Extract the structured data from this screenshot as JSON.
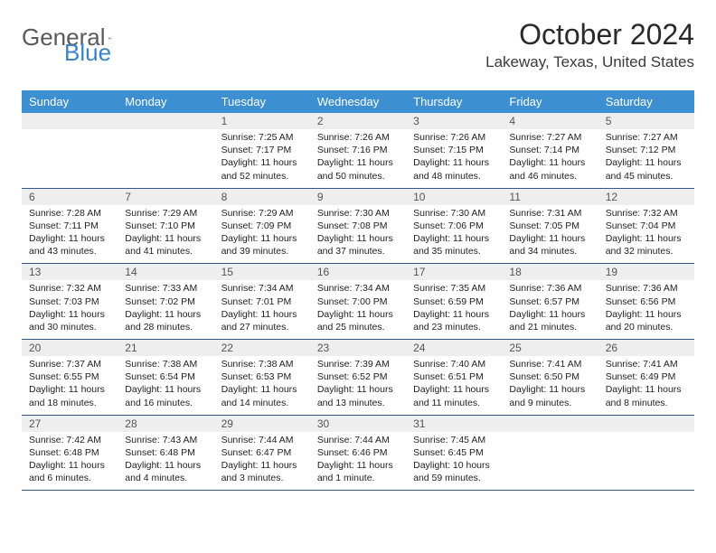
{
  "brand": {
    "part1": "General",
    "part2": "Blue"
  },
  "title": "October 2024",
  "location": "Lakeway, Texas, United States",
  "colors": {
    "header_bg": "#3c8fd1",
    "header_text": "#ffffff",
    "rule": "#34568b",
    "num_bg": "#eeeeee",
    "logo_blue": "#3a84c4"
  },
  "day_names": [
    "Sunday",
    "Monday",
    "Tuesday",
    "Wednesday",
    "Thursday",
    "Friday",
    "Saturday"
  ],
  "weeks": [
    [
      null,
      null,
      {
        "n": "1",
        "sr": "Sunrise: 7:25 AM",
        "ss": "Sunset: 7:17 PM",
        "d1": "Daylight: 11 hours",
        "d2": "and 52 minutes."
      },
      {
        "n": "2",
        "sr": "Sunrise: 7:26 AM",
        "ss": "Sunset: 7:16 PM",
        "d1": "Daylight: 11 hours",
        "d2": "and 50 minutes."
      },
      {
        "n": "3",
        "sr": "Sunrise: 7:26 AM",
        "ss": "Sunset: 7:15 PM",
        "d1": "Daylight: 11 hours",
        "d2": "and 48 minutes."
      },
      {
        "n": "4",
        "sr": "Sunrise: 7:27 AM",
        "ss": "Sunset: 7:14 PM",
        "d1": "Daylight: 11 hours",
        "d2": "and 46 minutes."
      },
      {
        "n": "5",
        "sr": "Sunrise: 7:27 AM",
        "ss": "Sunset: 7:12 PM",
        "d1": "Daylight: 11 hours",
        "d2": "and 45 minutes."
      }
    ],
    [
      {
        "n": "6",
        "sr": "Sunrise: 7:28 AM",
        "ss": "Sunset: 7:11 PM",
        "d1": "Daylight: 11 hours",
        "d2": "and 43 minutes."
      },
      {
        "n": "7",
        "sr": "Sunrise: 7:29 AM",
        "ss": "Sunset: 7:10 PM",
        "d1": "Daylight: 11 hours",
        "d2": "and 41 minutes."
      },
      {
        "n": "8",
        "sr": "Sunrise: 7:29 AM",
        "ss": "Sunset: 7:09 PM",
        "d1": "Daylight: 11 hours",
        "d2": "and 39 minutes."
      },
      {
        "n": "9",
        "sr": "Sunrise: 7:30 AM",
        "ss": "Sunset: 7:08 PM",
        "d1": "Daylight: 11 hours",
        "d2": "and 37 minutes."
      },
      {
        "n": "10",
        "sr": "Sunrise: 7:30 AM",
        "ss": "Sunset: 7:06 PM",
        "d1": "Daylight: 11 hours",
        "d2": "and 35 minutes."
      },
      {
        "n": "11",
        "sr": "Sunrise: 7:31 AM",
        "ss": "Sunset: 7:05 PM",
        "d1": "Daylight: 11 hours",
        "d2": "and 34 minutes."
      },
      {
        "n": "12",
        "sr": "Sunrise: 7:32 AM",
        "ss": "Sunset: 7:04 PM",
        "d1": "Daylight: 11 hours",
        "d2": "and 32 minutes."
      }
    ],
    [
      {
        "n": "13",
        "sr": "Sunrise: 7:32 AM",
        "ss": "Sunset: 7:03 PM",
        "d1": "Daylight: 11 hours",
        "d2": "and 30 minutes."
      },
      {
        "n": "14",
        "sr": "Sunrise: 7:33 AM",
        "ss": "Sunset: 7:02 PM",
        "d1": "Daylight: 11 hours",
        "d2": "and 28 minutes."
      },
      {
        "n": "15",
        "sr": "Sunrise: 7:34 AM",
        "ss": "Sunset: 7:01 PM",
        "d1": "Daylight: 11 hours",
        "d2": "and 27 minutes."
      },
      {
        "n": "16",
        "sr": "Sunrise: 7:34 AM",
        "ss": "Sunset: 7:00 PM",
        "d1": "Daylight: 11 hours",
        "d2": "and 25 minutes."
      },
      {
        "n": "17",
        "sr": "Sunrise: 7:35 AM",
        "ss": "Sunset: 6:59 PM",
        "d1": "Daylight: 11 hours",
        "d2": "and 23 minutes."
      },
      {
        "n": "18",
        "sr": "Sunrise: 7:36 AM",
        "ss": "Sunset: 6:57 PM",
        "d1": "Daylight: 11 hours",
        "d2": "and 21 minutes."
      },
      {
        "n": "19",
        "sr": "Sunrise: 7:36 AM",
        "ss": "Sunset: 6:56 PM",
        "d1": "Daylight: 11 hours",
        "d2": "and 20 minutes."
      }
    ],
    [
      {
        "n": "20",
        "sr": "Sunrise: 7:37 AM",
        "ss": "Sunset: 6:55 PM",
        "d1": "Daylight: 11 hours",
        "d2": "and 18 minutes."
      },
      {
        "n": "21",
        "sr": "Sunrise: 7:38 AM",
        "ss": "Sunset: 6:54 PM",
        "d1": "Daylight: 11 hours",
        "d2": "and 16 minutes."
      },
      {
        "n": "22",
        "sr": "Sunrise: 7:38 AM",
        "ss": "Sunset: 6:53 PM",
        "d1": "Daylight: 11 hours",
        "d2": "and 14 minutes."
      },
      {
        "n": "23",
        "sr": "Sunrise: 7:39 AM",
        "ss": "Sunset: 6:52 PM",
        "d1": "Daylight: 11 hours",
        "d2": "and 13 minutes."
      },
      {
        "n": "24",
        "sr": "Sunrise: 7:40 AM",
        "ss": "Sunset: 6:51 PM",
        "d1": "Daylight: 11 hours",
        "d2": "and 11 minutes."
      },
      {
        "n": "25",
        "sr": "Sunrise: 7:41 AM",
        "ss": "Sunset: 6:50 PM",
        "d1": "Daylight: 11 hours",
        "d2": "and 9 minutes."
      },
      {
        "n": "26",
        "sr": "Sunrise: 7:41 AM",
        "ss": "Sunset: 6:49 PM",
        "d1": "Daylight: 11 hours",
        "d2": "and 8 minutes."
      }
    ],
    [
      {
        "n": "27",
        "sr": "Sunrise: 7:42 AM",
        "ss": "Sunset: 6:48 PM",
        "d1": "Daylight: 11 hours",
        "d2": "and 6 minutes."
      },
      {
        "n": "28",
        "sr": "Sunrise: 7:43 AM",
        "ss": "Sunset: 6:48 PM",
        "d1": "Daylight: 11 hours",
        "d2": "and 4 minutes."
      },
      {
        "n": "29",
        "sr": "Sunrise: 7:44 AM",
        "ss": "Sunset: 6:47 PM",
        "d1": "Daylight: 11 hours",
        "d2": "and 3 minutes."
      },
      {
        "n": "30",
        "sr": "Sunrise: 7:44 AM",
        "ss": "Sunset: 6:46 PM",
        "d1": "Daylight: 11 hours",
        "d2": "and 1 minute."
      },
      {
        "n": "31",
        "sr": "Sunrise: 7:45 AM",
        "ss": "Sunset: 6:45 PM",
        "d1": "Daylight: 10 hours",
        "d2": "and 59 minutes."
      },
      null,
      null
    ]
  ]
}
